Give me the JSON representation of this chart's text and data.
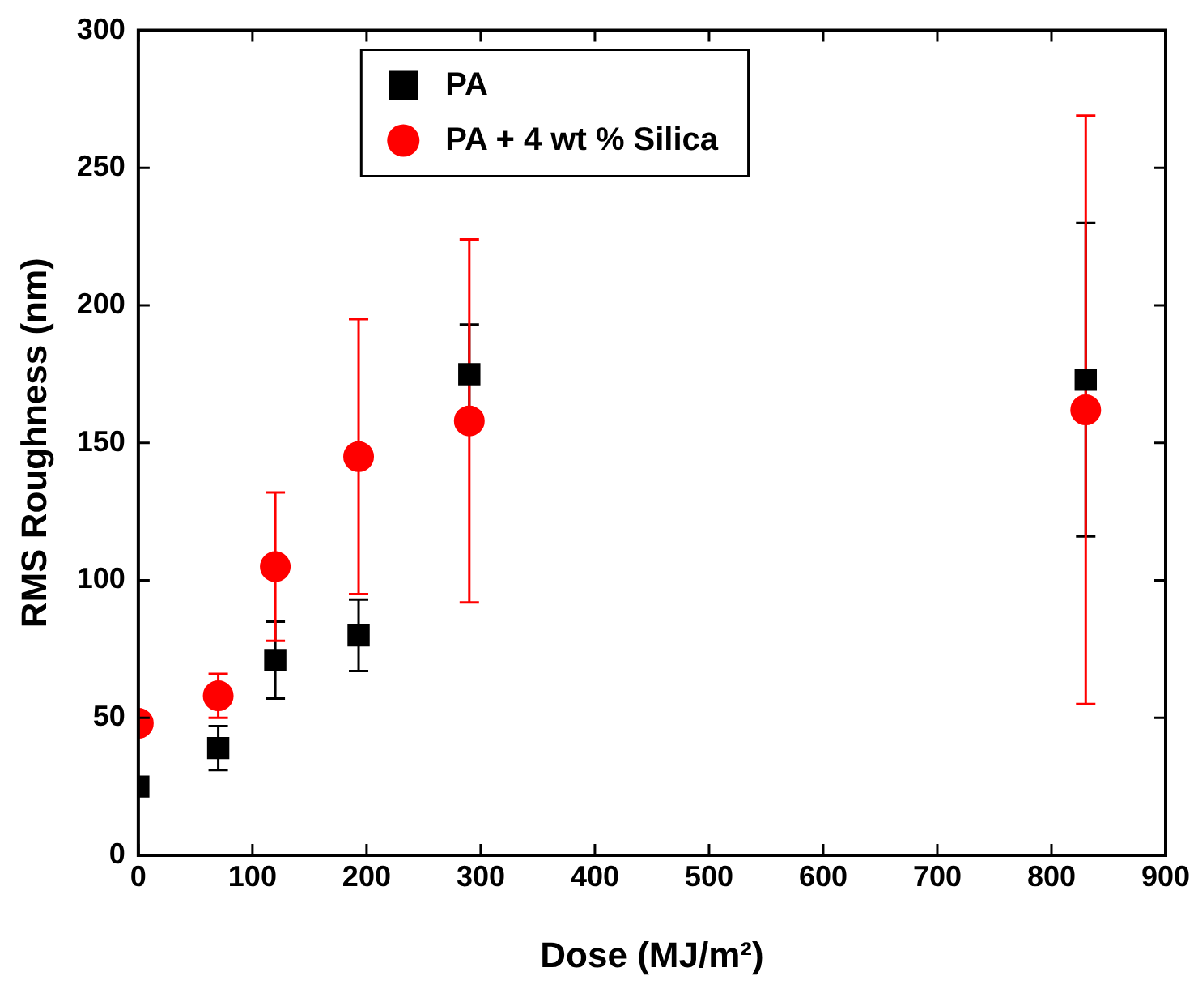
{
  "chart_data": {
    "type": "scatter",
    "xlabel": "Dose (MJ/m²)",
    "ylabel": "RMS Roughness (nm)",
    "x": [
      0,
      70,
      120,
      193,
      290,
      830
    ],
    "series": [
      {
        "name": "PA",
        "color": "#000000",
        "marker": "square",
        "values": [
          25,
          39,
          71,
          80,
          175,
          173
        ],
        "errors": [
          null,
          8,
          14,
          13,
          18,
          57
        ]
      },
      {
        "name": "PA + 4 wt % Silica",
        "color": "#ff0000",
        "marker": "circle",
        "values": [
          48,
          58,
          105,
          145,
          158,
          162
        ],
        "errors": [
          null,
          8,
          27,
          50,
          66,
          107
        ]
      }
    ],
    "xlim": [
      0,
      900
    ],
    "xticks": [
      0,
      100,
      200,
      300,
      400,
      500,
      600,
      700,
      800,
      900
    ],
    "ylim": [
      0,
      300
    ],
    "yticks": [
      0,
      50,
      100,
      150,
      200,
      250,
      300
    ],
    "grid": false,
    "legend": "top"
  }
}
